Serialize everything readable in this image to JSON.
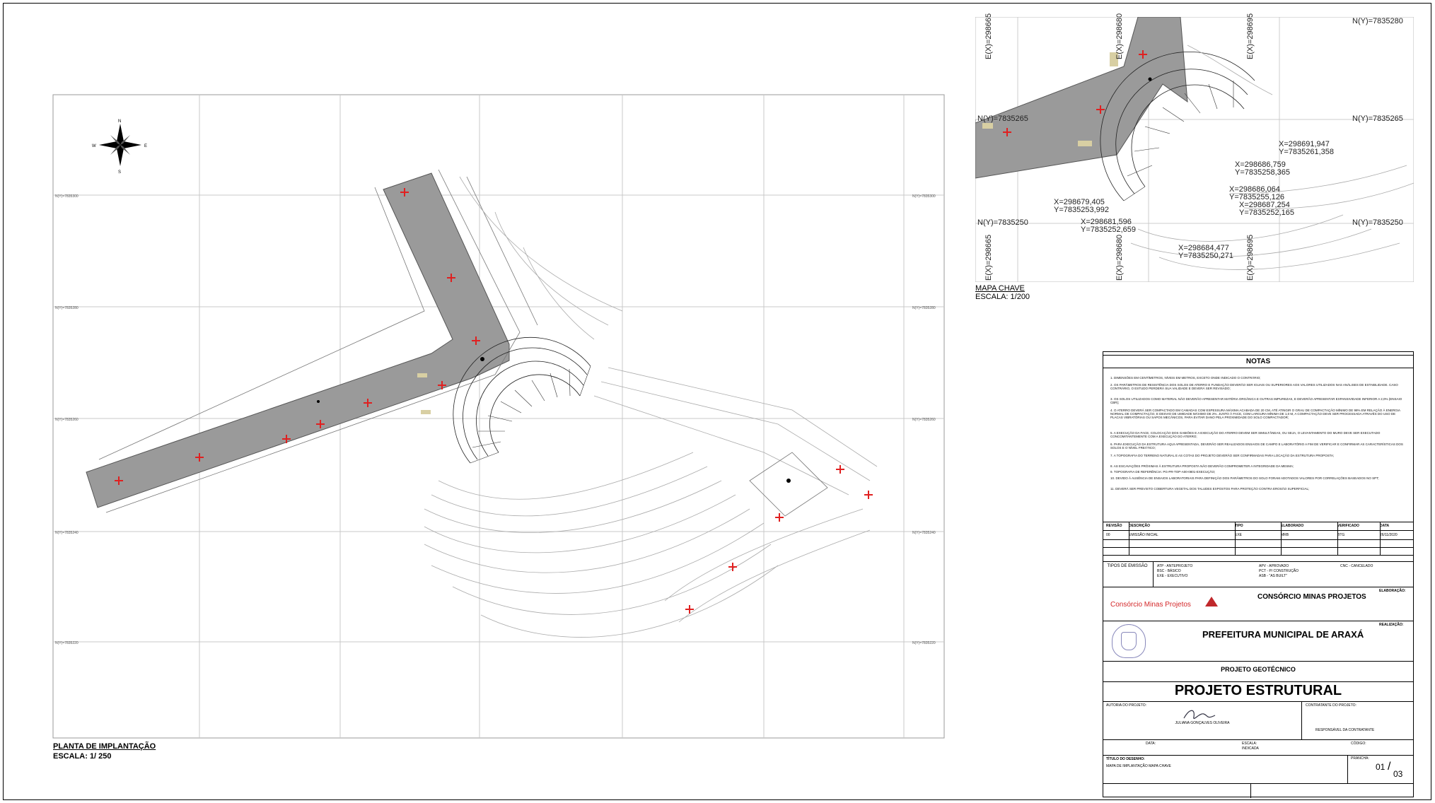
{
  "main_plan": {
    "caption": "PLANTA DE IMPLANTAÇÃO",
    "scale": "ESCALA: 1/ 250"
  },
  "key_map": {
    "caption": "MAPA CHAVE",
    "scale": "ESCALA: 1/200",
    "grid_labels": {
      "n_top": "N(Y)=7835280",
      "n_mid_left": "N(Y)=7835265",
      "n_mid_right": "N(Y)=7835265",
      "n_low_left": "N(Y)=7835250",
      "n_low_right": "N(Y)=7835250",
      "e_1_top": "E(X)=298665",
      "e_2_top": "E(X)=298680",
      "e_3_top": "E(X)=298695",
      "e_1_bottom": "E(X)=298665",
      "e_2_bottom": "E(X)=298680",
      "e_3_bottom": "E(X)=298695"
    },
    "points": [
      {
        "x": "X=298691,947",
        "y": "Y=7835261,358"
      },
      {
        "x": "X=298686,759",
        "y": "Y=7835258,365"
      },
      {
        "x": "X=298686,064",
        "y": "Y=7835255,126"
      },
      {
        "x": "X=298687,254",
        "y": "Y=7835252,165"
      },
      {
        "x": "X=298679,405",
        "y": "Y=7835253,992"
      },
      {
        "x": "X=298681,596",
        "y": "Y=7835252,659"
      },
      {
        "x": "X=298684,477",
        "y": "Y=7835250,271"
      }
    ]
  },
  "title_block": {
    "notes_heading": "NOTAS",
    "notes": [
      "1. DIMENSÕES EM CENTÍMETROS, NÍVEIS EM METROS, EXCETO ONDE INDICADO O CONTRÁRIO;",
      "2. OS PARÂMETROS DE RESISTÊNCIA DOS SOLOS DE ATERRO E FUNDAÇÃO DEVERÃO SER IGUAIS OU SUPERIORES AOS VALORES UTILIZADOS NAS ANÁLISES DE ESTABILIDADE. CASO CONTRÁRIO, O ESTUDO PERDERÁ SUA VALIDADE E DEVERÁ SER REVISADO;",
      "3. OS SOLOS UTILIZADOS COMO MATERIAL NÃO DEVERÃO APRESENTAR MATÉRIA ORGÂNICA E OUTRAS IMPUREZAS, E DEVERÃO APRESENTAR EXPANSIVIDADE INFERIOR A 2,0% (ENSAIO CBR);",
      "4. O ATERRO DEVERÁ SER COMPACTADO EM CAMADAS COM ESPESSURA MÁXIMA ACABADA DE 20 CM, ATÉ ATINGIR O GRAU DE COMPACTAÇÃO MÍNIMO DE 98% EM RELAÇÃO À ENERGIA NORMAL DE COMPACTAÇÃO, E DESVIO DE UMIDADE MÁXIMO DE 2%. JUNTO À FACE, COM LARGURA MÍNIMA DE 1,0 M, A COMPACTAÇÃO DEVE SER PROCESSADA ATRAVÉS DO USO DE PLACAS VIBRATÓRIAS OU SAPOS MECÂNICOS, PARA EVITAR DANO PELA PROXIMIDADE DO SOLO COMPACTADOR;",
      "5. A EXECUÇÃO DA FACE, COLOCAÇÃO DOS GABIÕES E A EXECUÇÃO DO ATERRO DEVEM SER SIMULTÂNEAS, OU SEJA, O LEVANTAMENTO DO MURO DEVE SER EXECUTADO CONCOMITANTEMENTE COM A EXECUÇÃO DO ATERRO;",
      "6. PARA EXECUÇÃO DA ESTRUTURA AQUI APRESENTADA, DEVERÃO SER REALIZADOS ENSAIOS DE CAMPO E LABORATÓRIO A FIM DE VERIFICAR E CONFIRMAR AS CARACTERÍSTICAS DOS SOLOS E O NÍVEL FREÁTICO;",
      "7. A TOPOGRAFIA DO TERRENO NATURAL E AS COTAS DO PROJETO DEVERÃO SER CONFIRMADAS PARA LOCAÇÃO DA ESTRUTURA PROPOSTA;",
      "8. AS ESCAVAÇÕES PRÓXIMAS À ESTRUTURA PROPOSTA NÃO DEVERÃO COMPROMETER A INTEGRIDADE DA MESMA;",
      "9. TOPOGRAFIA DE REFERÊNCIA: PG-PR-TOP-A00-0801-EXECUÇÃO;",
      "10. DEVIDO À AUSÊNCIA DE ENSAIOS LABORATORIAIS PARA DEFINIÇÃO DOS PARÂMETROS DO SOLO FORAM ADOTADOS VALORES POR CORRELAÇÕES BASEADOS NO SPT;",
      "11. DEVERÁ SER PREVISTO COBERTURA VEGETAL DOS TALUDES EXPOSTOS PARA PROTEÇÃO CONTRA EROSÃO SUPERFICIAL;"
    ],
    "revision_headers": [
      "REVISÃO",
      "DESCRIÇÃO",
      "TIPO",
      "ELABORADO",
      "VERIFICADO",
      "DATA"
    ],
    "revision_row": [
      "00",
      "EMISSÃO INICIAL",
      "EXE",
      "MRB",
      "BTG",
      "26/11/2020"
    ],
    "emission_types_label": "TIPOS DE EMISSÃO",
    "emission_types": [
      "ATP - ANTEPROJETO",
      "BSC - BÁSICO",
      "EXE - EXECUTIVO",
      "APV - APROVADO",
      "PCT - P/ CONSTRUÇÃO",
      "ASB - \"AS BUILT\"",
      "CNC - CANCELADO"
    ],
    "executor_label": "ELABORAÇÃO:",
    "executor_logo_text": "Consórcio Minas Projetos",
    "executor_name": "CONSÓRCIO MINAS PROJETOS",
    "client_label": "REALIZAÇÃO:",
    "client_name": "PREFEITURA MUNICIPAL DE ARAXÁ",
    "project_type": "PROJETO GEOTÉCNICO",
    "project_title": "PROJETO ESTRUTURAL",
    "author_label": "AUTORIA DO PROJETO:",
    "author_name": "JULIANA GONÇALVES OLIVEIRA",
    "contractor_label": "CONTRATANTE DO PROJETO:",
    "contractor_resp": "RESPONSÁVEL DA CONTRATANTE",
    "date_label": "DATA:",
    "scale_label": "ESCALA:",
    "scale_value": "INDICADA",
    "code_label": "CÓDIGO:",
    "drawing_title_label": "TÍTULO DO DESENHO:",
    "drawing_title": "MAPA DE IMPLANTAÇÃO MAPA CHAVE",
    "sheet_label": "PRANCHA:",
    "sheet_num": "01",
    "sheet_total": "03"
  },
  "colors": {
    "road": "#9a9a9a",
    "marker": "#e02020",
    "brand": "#c0282b"
  }
}
